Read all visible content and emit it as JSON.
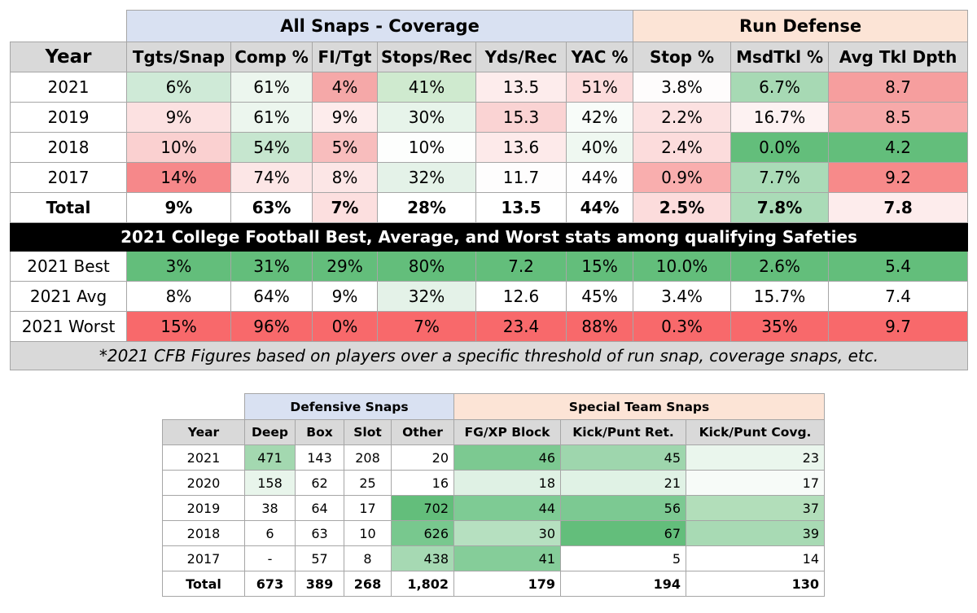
{
  "chart_data": [
    {
      "type": "table",
      "group_headers": [
        {
          "label": "",
          "span": 1
        },
        {
          "label": "All Snaps - Coverage",
          "span": 6
        },
        {
          "label": "Run Defense",
          "span": 3
        }
      ],
      "columns": [
        "Year",
        "Tgts/Snap",
        "Comp %",
        "FI/Tgt",
        "Stops/Rec",
        "Yds/Rec",
        "YAC %",
        "Stop %",
        "MsdTkl %",
        "Avg Tkl Dpth"
      ],
      "rows": [
        {
          "year": "2021",
          "values": [
            "6%",
            "61%",
            "4%",
            "41%",
            "13.5",
            "51%",
            "3.8%",
            "6.7%",
            "8.7"
          ],
          "colors": [
            "#cfead7",
            "#ecf6ee",
            "#f5a8a8",
            "#cfeacf",
            "#fdecec",
            "#fcdcdc",
            "#fefcfc",
            "#a7d9b4",
            "#f69e9e"
          ]
        },
        {
          "year": "2019",
          "values": [
            "9%",
            "61%",
            "9%",
            "30%",
            "15.3",
            "42%",
            "2.2%",
            "16.7%",
            "8.5"
          ],
          "colors": [
            "#fce1e1",
            "#ecf6ee",
            "#fdecec",
            "#e7f4ea",
            "#fad3d3",
            "#f8fcf9",
            "#fce1e1",
            "#fdf2f2",
            "#f7a9a9"
          ]
        },
        {
          "year": "2018",
          "values": [
            "10%",
            "54%",
            "5%",
            "10%",
            "13.6",
            "40%",
            "2.4%",
            "0.0%",
            "4.2"
          ],
          "colors": [
            "#fad0d0",
            "#c6e6cf",
            "#f8bdbd",
            "#fdfefd",
            "#fdeaea",
            "#eff8f1",
            "#fcdcdc",
            "#63be7b",
            "#63be7b"
          ]
        },
        {
          "year": "2017",
          "values": [
            "14%",
            "74%",
            "8%",
            "32%",
            "11.7",
            "44%",
            "0.9%",
            "7.7%",
            "9.2"
          ],
          "colors": [
            "#f6888a",
            "#fce6e6",
            "#fce6e6",
            "#e4f2e8",
            "#fefdfd",
            "#fefefe",
            "#f9aeae",
            "#aadbb7",
            "#f78a8a"
          ]
        },
        {
          "year": "Total",
          "values": [
            "9%",
            "63%",
            "7%",
            "28%",
            "13.5",
            "44%",
            "2.5%",
            "7.8%",
            "7.8"
          ],
          "total": true,
          "colors": [
            "#ffffff",
            "#ffffff",
            "#fcdfdf",
            "#ffffff",
            "#ffffff",
            "#ffffff",
            "#fcdcdc",
            "#aadbb7",
            "#fdecec"
          ]
        }
      ],
      "banner": "2021 College Football Best, Average, and Worst stats among qualifying Safeties",
      "reference_rows": [
        {
          "year": "2021 Best",
          "values": [
            "3%",
            "31%",
            "29%",
            "80%",
            "7.2",
            "15%",
            "10.0%",
            "2.6%",
            "5.4"
          ],
          "colors": [
            "#63be7b",
            "#63be7b",
            "#63be7b",
            "#63be7b",
            "#63be7b",
            "#63be7b",
            "#63be7b",
            "#63be7b",
            "#63be7b"
          ]
        },
        {
          "year": "2021 Avg",
          "values": [
            "8%",
            "64%",
            "9%",
            "32%",
            "12.6",
            "45%",
            "3.4%",
            "15.7%",
            "7.4"
          ],
          "colors": [
            "#ffffff",
            "#ffffff",
            "#ffffff",
            "#e4f2e8",
            "#ffffff",
            "#ffffff",
            "#ffffff",
            "#ffffff",
            "#ffffff"
          ]
        },
        {
          "year": "2021 Worst",
          "values": [
            "15%",
            "96%",
            "0%",
            "7%",
            "23.4",
            "88%",
            "0.3%",
            "35%",
            "9.7"
          ],
          "colors": [
            "#f8696b",
            "#f8696b",
            "#f8696b",
            "#f8696b",
            "#f8696b",
            "#f8696b",
            "#f8696b",
            "#f8696b",
            "#f8696b"
          ]
        }
      ],
      "footnote": "*2021 CFB Figures based on players over a specific threshold of run snap, coverage snaps, etc."
    },
    {
      "type": "table",
      "group_headers": [
        {
          "label": "",
          "span": 1
        },
        {
          "label": "Defensive Snaps",
          "span": 4
        },
        {
          "label": "Special Team Snaps",
          "span": 3
        }
      ],
      "columns": [
        "Year",
        "Deep",
        "Box",
        "Slot",
        "Other",
        "FG/XP Block",
        "Kick/Punt Ret.",
        "Kick/Punt Covg."
      ],
      "rows": [
        {
          "year": "2021",
          "values": [
            "471",
            "143",
            "208",
            "20",
            "46",
            "45",
            "23"
          ],
          "colors": [
            "#a3d8b0",
            "#ffffff",
            "#ffffff",
            "#ffffff",
            "#7cc991",
            "#9ed6ad",
            "#eaf6ed"
          ]
        },
        {
          "year": "2020",
          "values": [
            "158",
            "62",
            "25",
            "16",
            "18",
            "21",
            "17"
          ],
          "colors": [
            "#e8f5eb",
            "#ffffff",
            "#ffffff",
            "#ffffff",
            "#dff1e4",
            "#e0f2e5",
            "#f7fbf8"
          ]
        },
        {
          "year": "2019",
          "values": [
            "38",
            "64",
            "17",
            "702",
            "44",
            "56",
            "37"
          ],
          "colors": [
            "#ffffff",
            "#ffffff",
            "#ffffff",
            "#63be7b",
            "#7ecb94",
            "#7cc992",
            "#b2deba"
          ]
        },
        {
          "year": "2018",
          "values": [
            "6",
            "63",
            "10",
            "626",
            "30",
            "67",
            "39"
          ],
          "colors": [
            "#ffffff",
            "#ffffff",
            "#ffffff",
            "#78c88e",
            "#b6e0c0",
            "#63be7b",
            "#a8dab4"
          ]
        },
        {
          "year": "2017",
          "values": [
            "-",
            "57",
            "8",
            "438",
            "41",
            "5",
            "14"
          ],
          "colors": [
            "#ffffff",
            "#ffffff",
            "#ffffff",
            "#a6d9b3",
            "#85cd99",
            "#ffffff",
            "#ffffff"
          ]
        },
        {
          "year": "Total",
          "values": [
            "673",
            "389",
            "268",
            "1,802",
            "179",
            "194",
            "130"
          ],
          "total": true,
          "colors": [
            "#ffffff",
            "#ffffff",
            "#ffffff",
            "#ffffff",
            "#ffffff",
            "#ffffff",
            "#ffffff"
          ]
        }
      ]
    }
  ]
}
